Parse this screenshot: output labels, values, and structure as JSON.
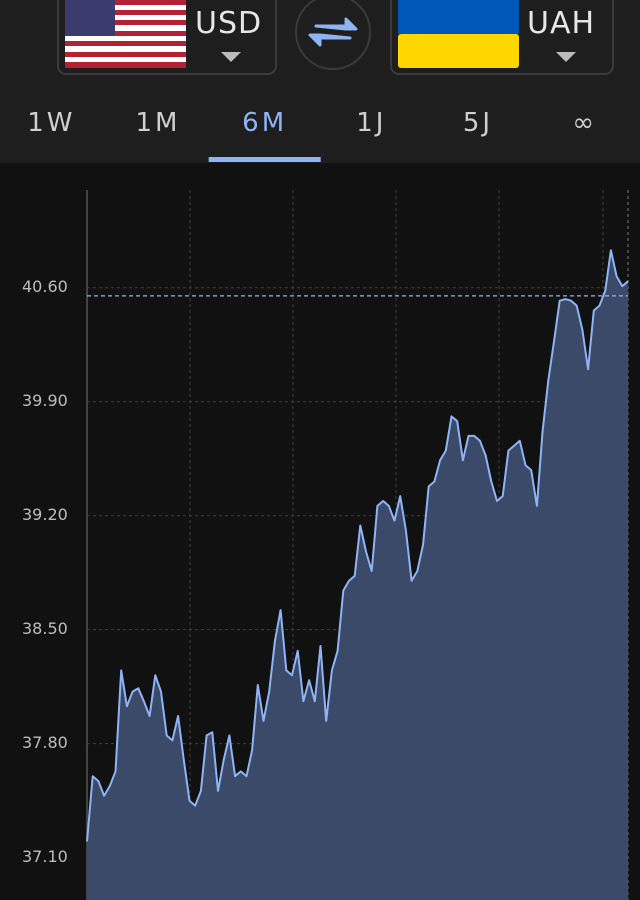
{
  "header": {
    "from_currency": "USD",
    "to_currency": "UAH"
  },
  "tabs": {
    "items": [
      "1W",
      "1M",
      "6M",
      "1J",
      "5J",
      "∞"
    ],
    "active": 2
  },
  "chart_data": {
    "type": "area",
    "values": [
      37.2,
      37.6,
      37.57,
      37.48,
      37.54,
      37.63,
      38.25,
      38.03,
      38.12,
      38.14,
      38.06,
      37.97,
      38.22,
      38.12,
      37.85,
      37.82,
      37.97,
      37.7,
      37.45,
      37.42,
      37.51,
      37.85,
      37.87,
      37.51,
      37.7,
      37.85,
      37.6,
      37.63,
      37.6,
      37.76,
      38.16,
      37.94,
      38.12,
      38.43,
      38.62,
      38.25,
      38.22,
      38.37,
      38.06,
      38.19,
      38.06,
      38.4,
      37.94,
      38.25,
      38.37,
      38.74,
      38.8,
      38.83,
      39.14,
      38.98,
      38.86,
      39.26,
      39.29,
      39.26,
      39.17,
      39.32,
      39.11,
      38.8,
      38.86,
      39.02,
      39.38,
      39.41,
      39.54,
      39.6,
      39.81,
      39.78,
      39.54,
      39.69,
      39.69,
      39.66,
      39.57,
      39.41,
      39.29,
      39.32,
      39.6,
      39.63,
      39.66,
      39.51,
      39.48,
      39.26,
      39.72,
      40.03,
      40.27,
      40.52,
      40.53,
      40.52,
      40.49,
      40.34,
      40.1,
      40.46,
      40.49,
      40.58,
      40.83,
      40.67,
      40.61,
      40.64
    ],
    "color": "#8fb4f5",
    "fill_color": "#3a4a68",
    "ylim": [
      36.84,
      41.2
    ],
    "yticks": [
      {
        "value": 37.1,
        "label": "37.10"
      },
      {
        "value": 37.8,
        "label": "37.80"
      },
      {
        "value": 38.5,
        "label": "38.50"
      },
      {
        "value": 39.2,
        "label": "39.20"
      },
      {
        "value": 39.9,
        "label": "39.90"
      },
      {
        "value": 40.6,
        "label": "40.60"
      }
    ],
    "grid": true,
    "reference_value": 40.55
  }
}
